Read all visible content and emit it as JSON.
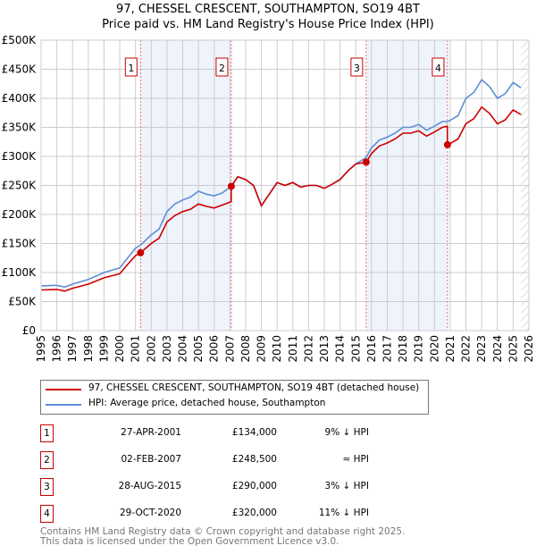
{
  "title": "97, CHESSEL CRESCENT, SOUTHAMPTON, SO19 4BT",
  "subtitle": "Price paid vs. HM Land Registry's House Price Index (HPI)",
  "chart_data": {
    "type": "line",
    "ylim": [
      0,
      500000
    ],
    "xlim": [
      1995,
      2026
    ],
    "yticks": [
      {
        "v": 0,
        "l": "£0"
      },
      {
        "v": 50000,
        "l": "£50K"
      },
      {
        "v": 100000,
        "l": "£100K"
      },
      {
        "v": 150000,
        "l": "£150K"
      },
      {
        "v": 200000,
        "l": "£200K"
      },
      {
        "v": 250000,
        "l": "£250K"
      },
      {
        "v": 300000,
        "l": "£300K"
      },
      {
        "v": 350000,
        "l": "£350K"
      },
      {
        "v": 400000,
        "l": "£400K"
      },
      {
        "v": 450000,
        "l": "£450K"
      },
      {
        "v": 500000,
        "l": "£500K"
      }
    ],
    "xticks": [
      "1995",
      "1996",
      "1997",
      "1998",
      "1999",
      "2000",
      "2001",
      "2002",
      "2003",
      "2004",
      "2005",
      "2006",
      "2007",
      "2008",
      "2009",
      "2010",
      "2011",
      "2012",
      "2013",
      "2014",
      "2015",
      "2016",
      "2017",
      "2018",
      "2019",
      "2020",
      "2021",
      "2022",
      "2023",
      "2024",
      "2025",
      "2026"
    ],
    "series": [
      {
        "name": "HPI: Average price, detached house, Southampton",
        "color": "#5b8fd4",
        "x": [
          1995,
          1996,
          1996.5,
          1997,
          1998,
          1999,
          2000,
          2000.5,
          2001,
          2001.32,
          2002,
          2002.5,
          2003,
          2003.5,
          2004,
          2004.5,
          2005,
          2005.5,
          2006,
          2006.5,
          2007.09,
          2007.5,
          2008,
          2008.5,
          2009,
          2009.5,
          2010,
          2010.5,
          2011,
          2011.5,
          2012,
          2012.5,
          2013,
          2013.5,
          2014,
          2014.5,
          2015,
          2015.66,
          2016,
          2016.5,
          2017,
          2017.5,
          2018,
          2018.5,
          2019,
          2019.5,
          2020,
          2020.5,
          2020.83,
          2021,
          2021.5,
          2022,
          2022.5,
          2023,
          2023.5,
          2024,
          2024.5,
          2025,
          2025.5
        ],
        "y": [
          77000,
          78000,
          75000,
          80000,
          88000,
          100000,
          108000,
          125000,
          142000,
          147000,
          165000,
          175000,
          205000,
          218000,
          225000,
          230000,
          240000,
          235000,
          232000,
          237000,
          248000,
          265000,
          260000,
          250000,
          215000,
          235000,
          255000,
          250000,
          255000,
          247000,
          250000,
          250000,
          245000,
          252000,
          260000,
          275000,
          287000,
          298000,
          315000,
          328000,
          333000,
          340000,
          350000,
          350000,
          355000,
          345000,
          352000,
          360000,
          360000,
          362000,
          370000,
          400000,
          410000,
          432000,
          420000,
          400000,
          408000,
          427000,
          418000
        ]
      },
      {
        "name": "97, CHESSEL CRESCENT, SOUTHAMPTON, SO19 4BT (detached house)",
        "color": "#cc0000",
        "x": [
          1995,
          1996,
          1996.5,
          1997,
          1998,
          1999,
          2000,
          2000.5,
          2001,
          2001.32,
          2002,
          2002.5,
          2003,
          2003.5,
          2004,
          2004.5,
          2005,
          2005.5,
          2006,
          2006.5,
          2007.08,
          2007.09,
          2007.5,
          2008,
          2008.5,
          2009,
          2009.5,
          2010,
          2010.5,
          2011,
          2011.5,
          2012,
          2012.5,
          2013,
          2013.5,
          2014,
          2014.5,
          2015,
          2015.66,
          2016,
          2016.5,
          2017,
          2017.5,
          2018,
          2018.5,
          2019,
          2019.5,
          2020,
          2020.5,
          2020.82,
          2020.83,
          2021,
          2021.5,
          2022,
          2022.5,
          2023,
          2023.5,
          2024,
          2024.5,
          2025,
          2025.5
        ],
        "y": [
          70000,
          71000,
          68000,
          73000,
          80000,
          91000,
          98000,
          114000,
          129000,
          134000,
          150000,
          159000,
          187000,
          198000,
          205000,
          209000,
          218000,
          214000,
          211000,
          216000,
          222000,
          248500,
          265000,
          260000,
          250000,
          215000,
          235000,
          255000,
          250000,
          255000,
          247000,
          250000,
          250000,
          245000,
          252000,
          260000,
          275000,
          287000,
          290000,
          305000,
          318000,
          323000,
          330000,
          340000,
          340000,
          344000,
          335000,
          342000,
          350000,
          352000,
          320000,
          322000,
          330000,
          356000,
          365000,
          385000,
          374000,
          356000,
          363000,
          380000,
          372000
        ]
      }
    ],
    "sales": [
      {
        "n": "1",
        "x": 2001.32,
        "y": 134000,
        "date": "27-APR-2001",
        "price": "£134,000",
        "hpi": "9% ↓ HPI"
      },
      {
        "n": "2",
        "x": 2007.09,
        "y": 248500,
        "date": "02-FEB-2007",
        "price": "£248,500",
        "hpi": "≈ HPI"
      },
      {
        "n": "3",
        "x": 2015.66,
        "y": 290000,
        "date": "28-AUG-2015",
        "price": "£290,000",
        "hpi": "3% ↓ HPI"
      },
      {
        "n": "4",
        "x": 2020.83,
        "y": 320000,
        "date": "29-OCT-2020",
        "price": "£320,000",
        "hpi": "11% ↓ HPI"
      }
    ],
    "shaded": [
      [
        2001.32,
        2007.09
      ],
      [
        2015.66,
        2020.83
      ]
    ],
    "forecast_start": 2025.5,
    "legend": "below"
  },
  "footer": [
    "Contains HM Land Registry data © Crown copyright and database right 2025.",
    "This data is licensed under the Open Government Licence v3.0."
  ]
}
